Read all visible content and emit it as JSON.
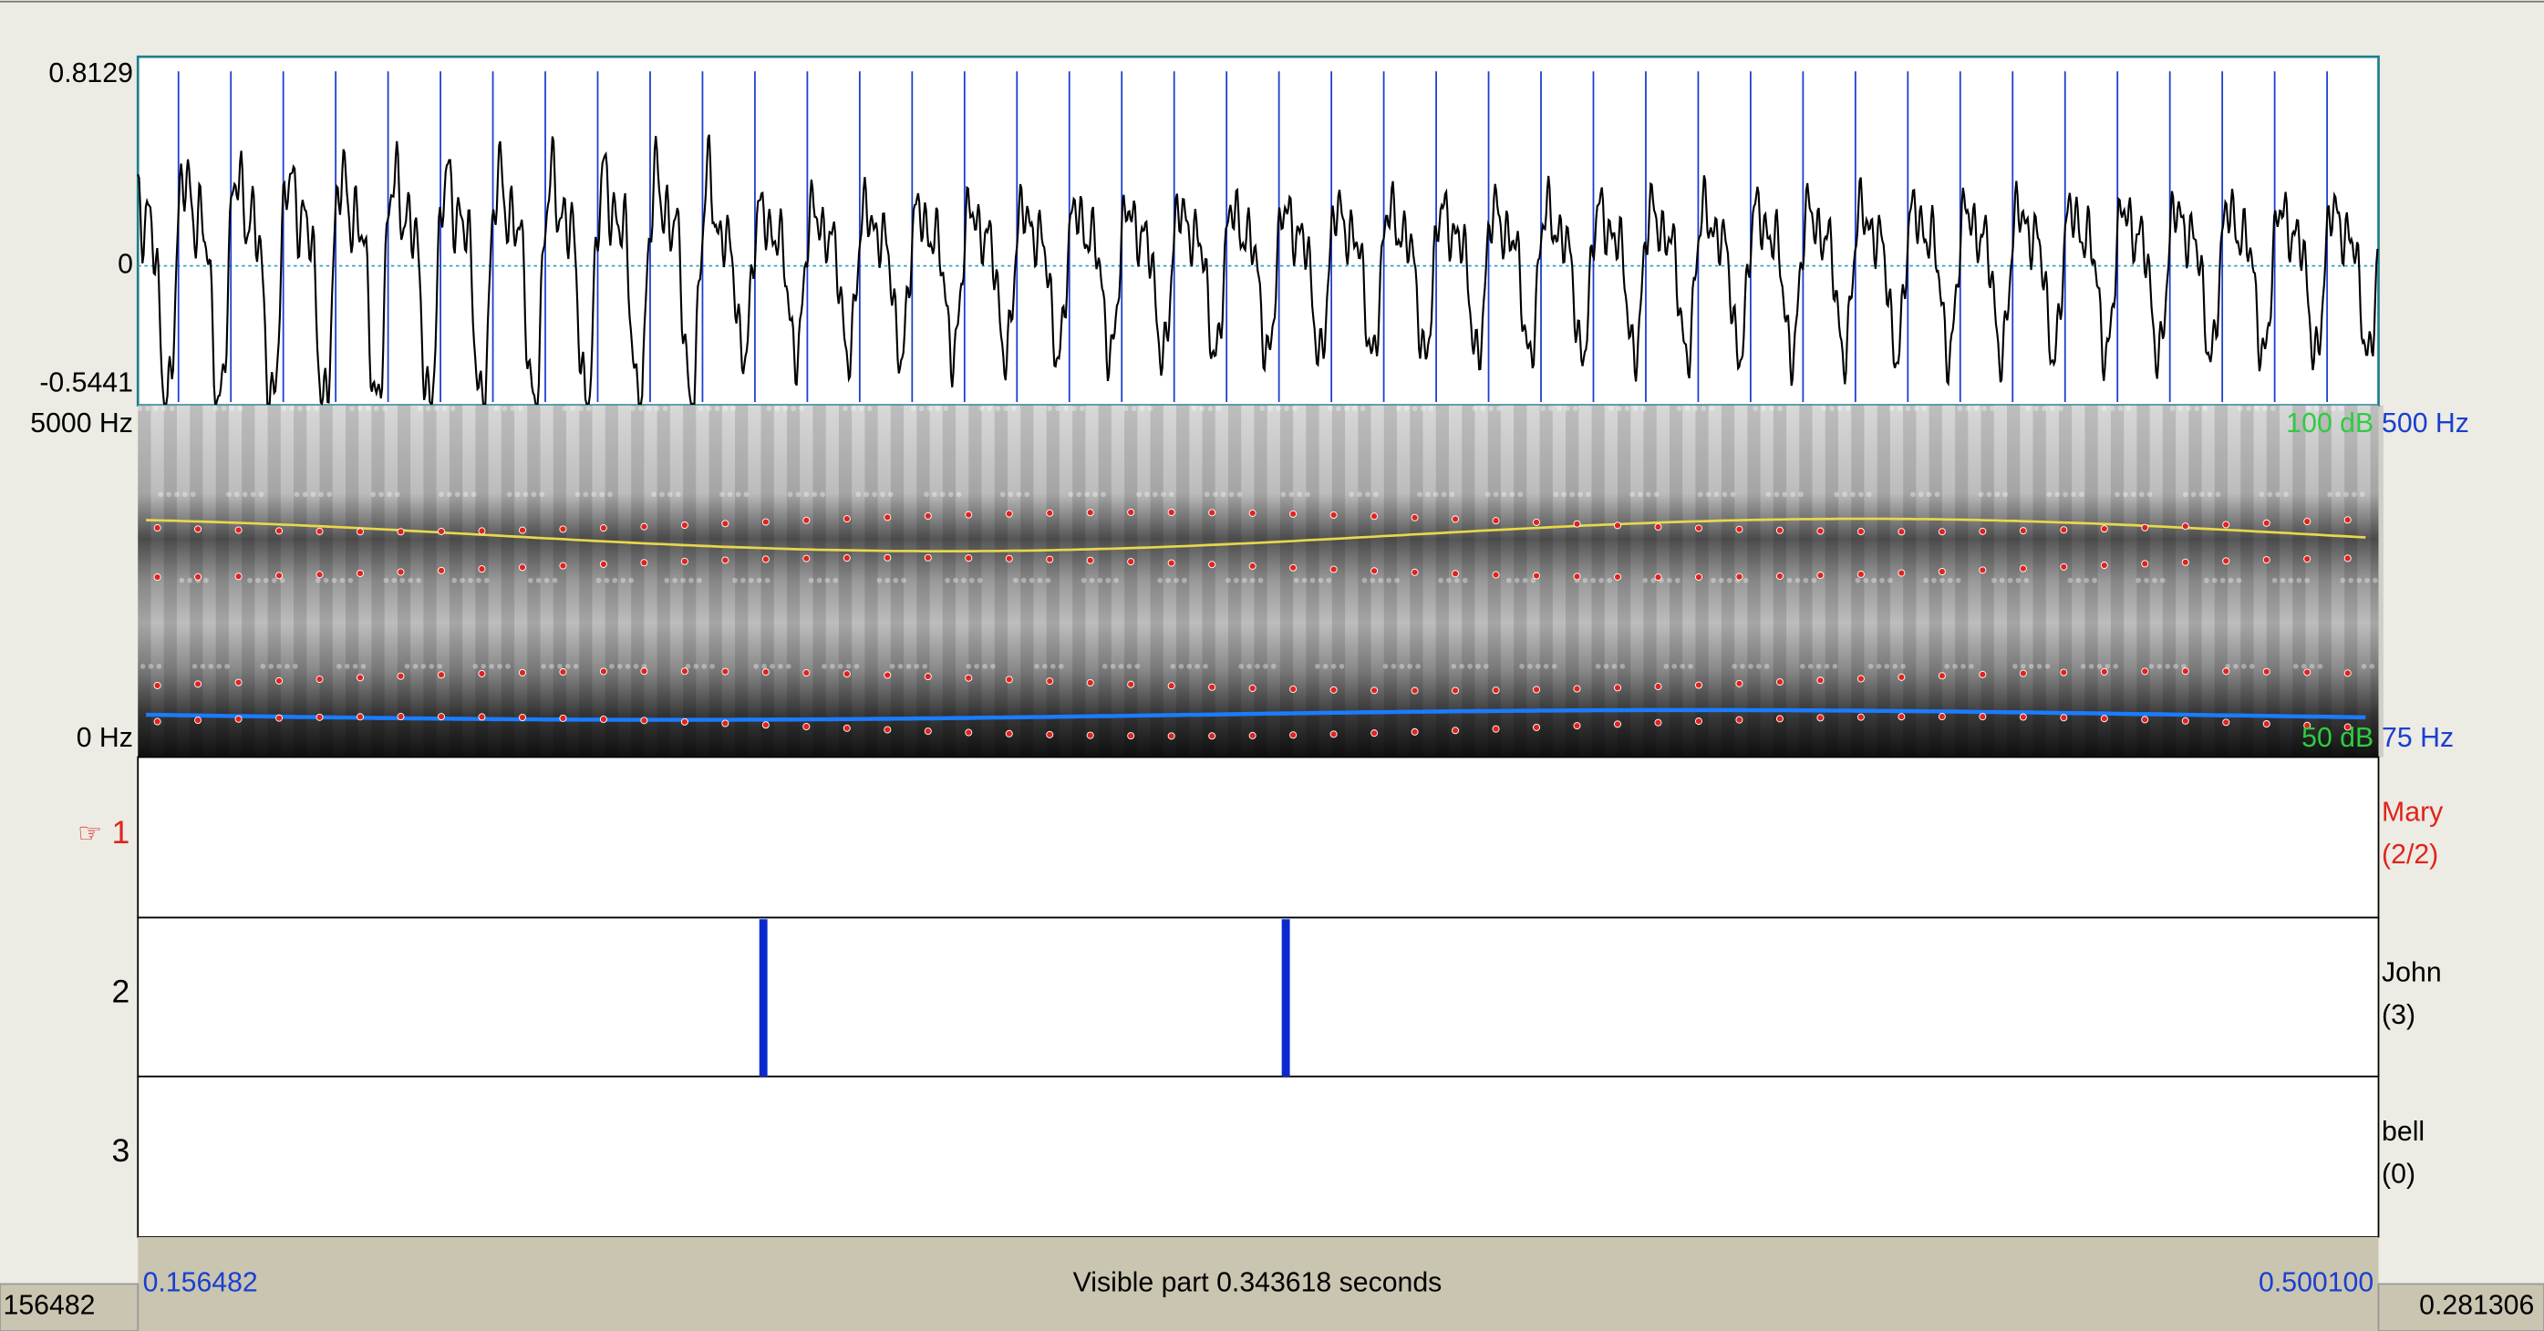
{
  "waveform": {
    "max": "0.8129",
    "zero": "0",
    "min": "-0.5441"
  },
  "spectrogram": {
    "freq_max": "5000 Hz",
    "freq_min": "0 Hz",
    "db_max": "100 dB",
    "pitch_max": "500 Hz",
    "db_min": "50 dB",
    "pitch_min": "75 Hz"
  },
  "tiers": [
    {
      "pointer": "☞",
      "number": "1",
      "name": "Mary",
      "count": "(2/2)"
    },
    {
      "number": "2",
      "name": "John",
      "count": "(3)"
    },
    {
      "number": "3",
      "name": "bell",
      "count": "(0)"
    }
  ],
  "footer": {
    "start": "0.156482",
    "visible": "Visible part 0.343618 seconds",
    "end": "0.500100",
    "left_value": "156482",
    "right_value": "0.281306"
  }
}
